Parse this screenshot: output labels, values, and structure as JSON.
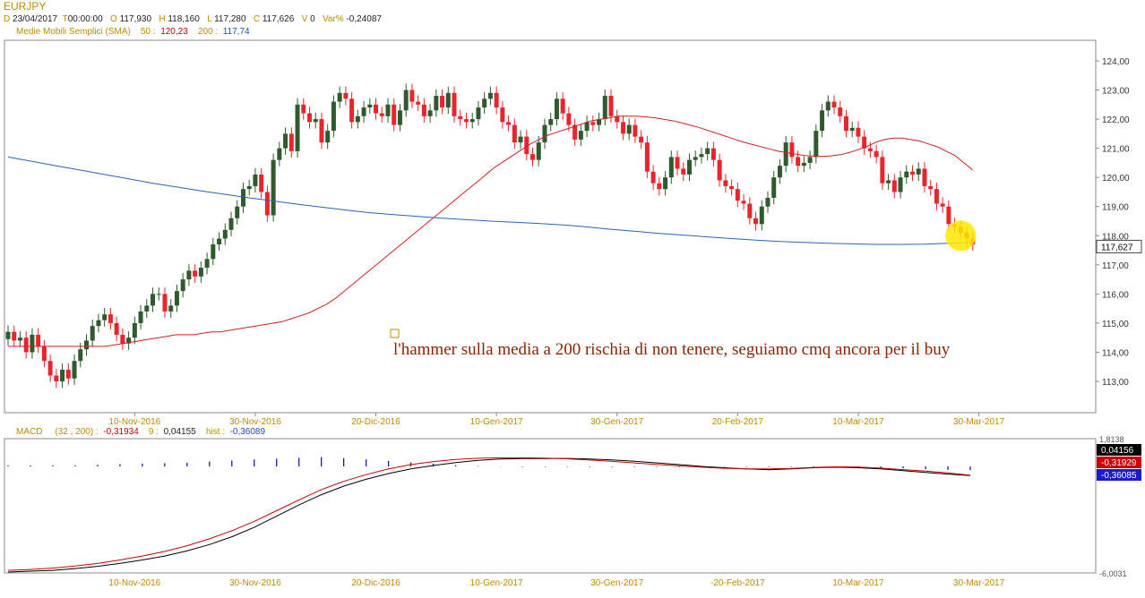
{
  "header": {
    "symbol": "EURJPY",
    "d_key": "D",
    "date": "23/04/2017",
    "t_key": "T",
    "time": "00:00:00",
    "o_key": "O",
    "open": "117,930",
    "h_key": "H",
    "high": "118,160",
    "l_key": "L",
    "low": "117,280",
    "c_key": "C",
    "close": "117,626",
    "vol_key": "V",
    "vol": "0",
    "var_key": "Var%",
    "var": "-0,24087"
  },
  "sma_legend": {
    "label": "Medie Mobili Semplici (SMA)",
    "p1": "50",
    "v1": "120,23",
    "p2": "200",
    "v2": "117,74"
  },
  "macd_legend": {
    "label": "MACD",
    "params": "(32 , 200)",
    "macd_value": "-0,31934",
    "signal_period": "9",
    "signal_value": "0,04155",
    "hist_label": "hist",
    "hist_value": "-0,36089"
  },
  "annotation": "l'hammer sulla media a 200 rischia di non tenere, seguiamo cmq ancora per il buy",
  "chart_data": [
    {
      "type": "candlestick",
      "title": "EURJPY",
      "ylim": [
        112.5,
        124.3
      ],
      "y_ticks": [
        "124,00",
        "123,00",
        "122,00",
        "121,00",
        "120,00",
        "119,00",
        "118,00",
        "117,00",
        "116,00",
        "115,00",
        "114,00",
        "113,00"
      ],
      "y_tick_values": [
        124,
        123,
        122,
        121,
        120,
        119,
        118,
        117,
        116,
        115,
        114,
        113
      ],
      "last_price_label": "117,627",
      "last_price": 117.627,
      "x_ticks": [
        "10-Nov-2016",
        "30-Nov-2016",
        "20-Dic-2016",
        "10-Gen-2017",
        "30-Gen-2017",
        "20-Feb-2017",
        "10-Mar-2017",
        "30-Mar-2017"
      ],
      "x_tick_bar_index": [
        21,
        41,
        61,
        81,
        101,
        121,
        141,
        161
      ],
      "colors": {
        "up": "#2e5a2e",
        "down": "#e8252a",
        "sma50": "#d02020",
        "sma200": "#2a62b8",
        "highlight": "#ffe800"
      },
      "closes": [
        114.7,
        114.4,
        114.5,
        114.0,
        114.6,
        114.2,
        113.7,
        113.2,
        113.0,
        113.4,
        113.1,
        113.7,
        114.1,
        114.4,
        114.9,
        115.1,
        115.3,
        115.0,
        114.6,
        114.3,
        114.5,
        115.0,
        115.4,
        115.6,
        116.0,
        116.0,
        115.4,
        115.6,
        116.1,
        116.5,
        116.8,
        116.6,
        116.9,
        117.2,
        117.7,
        117.9,
        118.2,
        118.6,
        119.0,
        119.6,
        119.7,
        120.1,
        119.5,
        118.7,
        120.6,
        121.0,
        121.5,
        120.9,
        122.5,
        122.2,
        121.9,
        122.0,
        121.2,
        121.6,
        122.6,
        122.9,
        122.7,
        121.9,
        122.1,
        122.4,
        122.5,
        122.2,
        122.1,
        122.5,
        121.8,
        122.3,
        123.0,
        122.6,
        122.5,
        122.1,
        122.3,
        122.8,
        122.4,
        122.9,
        122.1,
        122.0,
        121.9,
        122.0,
        122.4,
        122.7,
        122.9,
        122.4,
        121.9,
        121.8,
        121.2,
        121.4,
        120.8,
        120.6,
        121.2,
        121.8,
        122.0,
        122.7,
        122.2,
        121.8,
        121.3,
        121.6,
        121.9,
        121.8,
        122.0,
        122.8,
        122.1,
        121.9,
        121.5,
        121.8,
        121.4,
        121.2,
        120.2,
        119.8,
        119.6,
        120.0,
        120.7,
        120.3,
        120.1,
        120.6,
        120.7,
        120.8,
        121.0,
        120.6,
        119.9,
        119.7,
        119.6,
        119.2,
        119.1,
        118.6,
        118.4,
        119.0,
        119.3,
        120.0,
        120.4,
        121.2,
        120.7,
        120.4,
        120.5,
        120.7,
        121.6,
        122.3,
        122.6,
        122.4,
        122.1,
        121.6,
        121.7,
        121.4,
        121.0,
        120.9,
        120.7,
        119.8,
        119.9,
        119.5,
        120.0,
        120.2,
        120.1,
        120.3,
        119.7,
        119.6,
        119.1,
        119.0,
        118.4,
        118.3,
        118.1,
        117.9,
        117.7
      ],
      "sma50_values": [
        114.2,
        114.2,
        114.2,
        114.2,
        114.2,
        114.2,
        114.2,
        114.2,
        114.2,
        114.2,
        114.2,
        114.2,
        114.25,
        114.3,
        114.35,
        114.4,
        114.45,
        114.5,
        114.55,
        114.6,
        114.6,
        114.6,
        114.65,
        114.7,
        114.7,
        114.75,
        114.8,
        114.85,
        114.9,
        114.95,
        115.0,
        115.05,
        115.15,
        115.25,
        115.35,
        115.5,
        115.65,
        115.85,
        116.1,
        116.35,
        116.6,
        116.85,
        117.1,
        117.35,
        117.6,
        117.85,
        118.1,
        118.35,
        118.6,
        118.85,
        119.1,
        119.35,
        119.6,
        119.85,
        120.1,
        120.35,
        120.55,
        120.75,
        120.95,
        121.15,
        121.3,
        121.45,
        121.55,
        121.65,
        121.75,
        121.85,
        121.95,
        122.0,
        122.05,
        122.1,
        122.1,
        122.1,
        122.08,
        122.05,
        122.0,
        121.95,
        121.88,
        121.8,
        121.72,
        121.62,
        121.52,
        121.42,
        121.32,
        121.22,
        121.14,
        121.06,
        120.98,
        120.9,
        120.85,
        120.8,
        120.75,
        120.73,
        120.72,
        120.74,
        120.78,
        120.85,
        120.95,
        121.05,
        121.2,
        121.3,
        121.35,
        121.35,
        121.3,
        121.25,
        121.15,
        121.05,
        120.9,
        120.75,
        120.5,
        120.25
      ],
      "sma50_start_index": 0,
      "sma200_values": [
        120.7,
        120.55,
        120.4,
        120.25,
        120.1,
        119.95,
        119.8,
        119.67,
        119.54,
        119.42,
        119.3,
        119.19,
        119.08,
        118.98,
        118.88,
        118.79,
        118.72,
        118.66,
        118.6,
        118.55,
        118.5,
        118.46,
        118.42,
        118.37,
        118.3,
        118.22,
        118.15,
        118.08,
        118.02,
        117.96,
        117.9,
        117.85,
        117.8,
        117.77,
        117.74,
        117.72,
        117.7,
        117.7,
        117.71,
        117.74,
        117.77
      ],
      "sma200_step": 4
    },
    {
      "type": "line",
      "title": "MACD",
      "ylim": [
        -6.0031,
        1.8138
      ],
      "y_ticks": [
        "1,8138",
        "-6,0031"
      ],
      "y_tick_values": [
        1.8138,
        -6.0031
      ],
      "x_ticks": [
        "10-Nov-2016",
        "30-Nov-2016",
        "20-Dic-2016",
        "10-Gen-2017",
        "30-Gen-2017",
        "-20-Feb-2017",
        "10-Mar-2017",
        "30-Mar-2017"
      ],
      "value_labels": [
        "0,04156",
        "-0,31929",
        "-0,36085"
      ],
      "value_label_values": [
        0.04156,
        -0.31929,
        -0.36085
      ],
      "value_label_colors": [
        "#000000",
        "#cc0000",
        "#1a1ad0"
      ],
      "series": [
        {
          "name": "MACD",
          "color": "#000000",
          "values": [
            -5.95,
            -5.9,
            -5.85,
            -5.75,
            -5.62,
            -5.45,
            -5.25,
            -5.02,
            -4.72,
            -4.35,
            -3.9,
            -3.35,
            -2.7,
            -2.05,
            -1.45,
            -0.95,
            -0.55,
            -0.22,
            0.05,
            0.25,
            0.42,
            0.55,
            0.63,
            0.65,
            0.65,
            0.66,
            0.63,
            0.58,
            0.5,
            0.4,
            0.3,
            0.2,
            0.12,
            0.05,
            0.0,
            0.05,
            0.12,
            0.15,
            0.12,
            0.05,
            -0.05,
            -0.15,
            -0.25,
            -0.34
          ]
        },
        {
          "name": "signal",
          "color": "#cc0000",
          "values": [
            -5.85,
            -5.8,
            -5.72,
            -5.6,
            -5.45,
            -5.25,
            -5.02,
            -4.75,
            -4.42,
            -4.02,
            -3.55,
            -3.0,
            -2.38,
            -1.75,
            -1.15,
            -0.67,
            -0.28,
            0.05,
            0.3,
            0.48,
            0.6,
            0.67,
            0.7,
            0.7,
            0.68,
            0.64,
            0.57,
            0.49,
            0.4,
            0.31,
            0.23,
            0.15,
            0.09,
            0.06,
            0.06,
            0.08,
            0.14,
            0.18,
            0.16,
            0.1,
            0.01,
            -0.08,
            -0.18,
            -0.32
          ]
        },
        {
          "name": "hist",
          "color": "#1a1aa0",
          "values": [
            0.1,
            0.1,
            0.1,
            0.1,
            0.15,
            0.2,
            0.25,
            0.3,
            0.35,
            0.45,
            0.55,
            0.65,
            0.72,
            0.8,
            0.85,
            0.78,
            0.65,
            0.5,
            0.38,
            0.25,
            0.12,
            0.04,
            -0.02,
            -0.05,
            -0.05,
            -0.05,
            -0.05,
            -0.05,
            -0.05,
            -0.05,
            -0.05,
            -0.05,
            -0.05,
            -0.05,
            -0.05,
            -0.05,
            -0.05,
            -0.05,
            -0.1,
            -0.12,
            -0.18,
            -0.25,
            -0.32,
            -0.36
          ]
        }
      ]
    }
  ]
}
